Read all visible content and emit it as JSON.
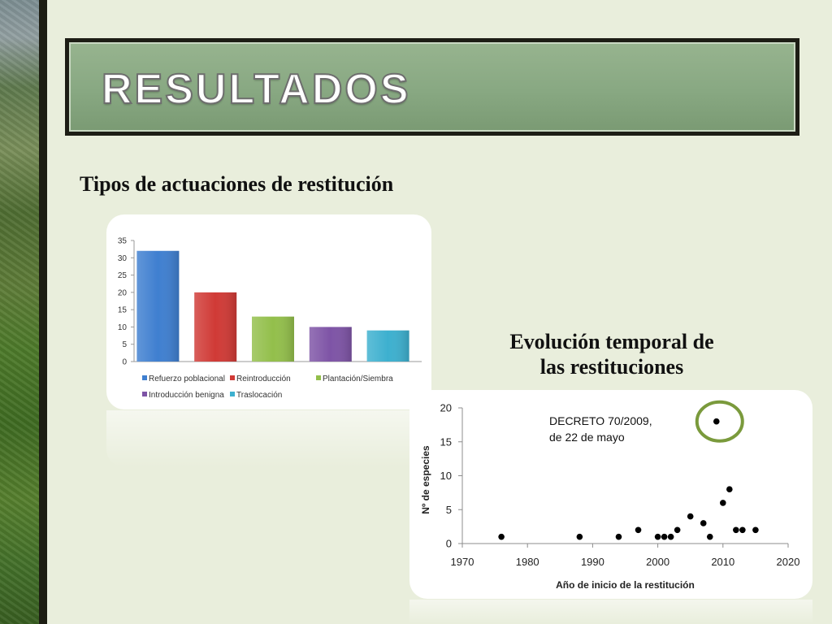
{
  "slide": {
    "title": "RESULTADOS",
    "bar_heading": "Tipos de actuaciones de restitución",
    "scatter_heading_line1": "Evolución temporal de",
    "scatter_heading_line2": "las restituciones"
  },
  "colors": {
    "background": "#e9eedc",
    "title_fill": "#8fae88",
    "scatter_dot": "#000000",
    "highlight_circle": "#7a9a3c"
  },
  "chart_data": [
    {
      "type": "bar",
      "title": "",
      "categories": [
        "Refuerzo poblacional",
        "Reintroducción",
        "Plantación/Siembra",
        "Introducción benigna",
        "Traslocación"
      ],
      "values": [
        32,
        20,
        13,
        10,
        9
      ],
      "series_colors": [
        "#3f7fd0",
        "#d03a36",
        "#93bf4b",
        "#7e54a6",
        "#3db0cf"
      ],
      "ylim": [
        0,
        35
      ],
      "yticks": [
        0,
        5,
        10,
        15,
        20,
        25,
        30,
        35
      ],
      "xlabel": "",
      "ylabel": "",
      "grid": false,
      "legend": {
        "placement": "bottom",
        "entries": [
          "Refuerzo poblacional",
          "Reintroducción",
          "Plantación/Siembra",
          "Introducción benigna",
          "Traslocación"
        ]
      }
    },
    {
      "type": "scatter",
      "title": "",
      "xlabel": "Año de inicio de la restitución",
      "ylabel": "Nº de especies",
      "xlim": [
        1970,
        2020
      ],
      "ylim": [
        0,
        20
      ],
      "xticks": [
        1970,
        1980,
        1990,
        2000,
        2010,
        2020
      ],
      "yticks": [
        0,
        5,
        10,
        15,
        20
      ],
      "grid": false,
      "points": [
        {
          "x": 1976,
          "y": 1
        },
        {
          "x": 1988,
          "y": 1
        },
        {
          "x": 1994,
          "y": 1
        },
        {
          "x": 1997,
          "y": 2
        },
        {
          "x": 2000,
          "y": 1
        },
        {
          "x": 2001,
          "y": 1
        },
        {
          "x": 2002,
          "y": 1
        },
        {
          "x": 2003,
          "y": 2
        },
        {
          "x": 2005,
          "y": 4
        },
        {
          "x": 2007,
          "y": 3
        },
        {
          "x": 2008,
          "y": 1
        },
        {
          "x": 2009,
          "y": 18
        },
        {
          "x": 2010,
          "y": 6
        },
        {
          "x": 2011,
          "y": 8
        },
        {
          "x": 2012,
          "y": 2
        },
        {
          "x": 2013,
          "y": 2
        },
        {
          "x": 2015,
          "y": 2
        }
      ],
      "annotation": {
        "line1": "DECRETO 70/2009,",
        "line2": "de 22 de mayo",
        "highlight_point": {
          "x": 2009,
          "y": 18
        }
      }
    }
  ]
}
